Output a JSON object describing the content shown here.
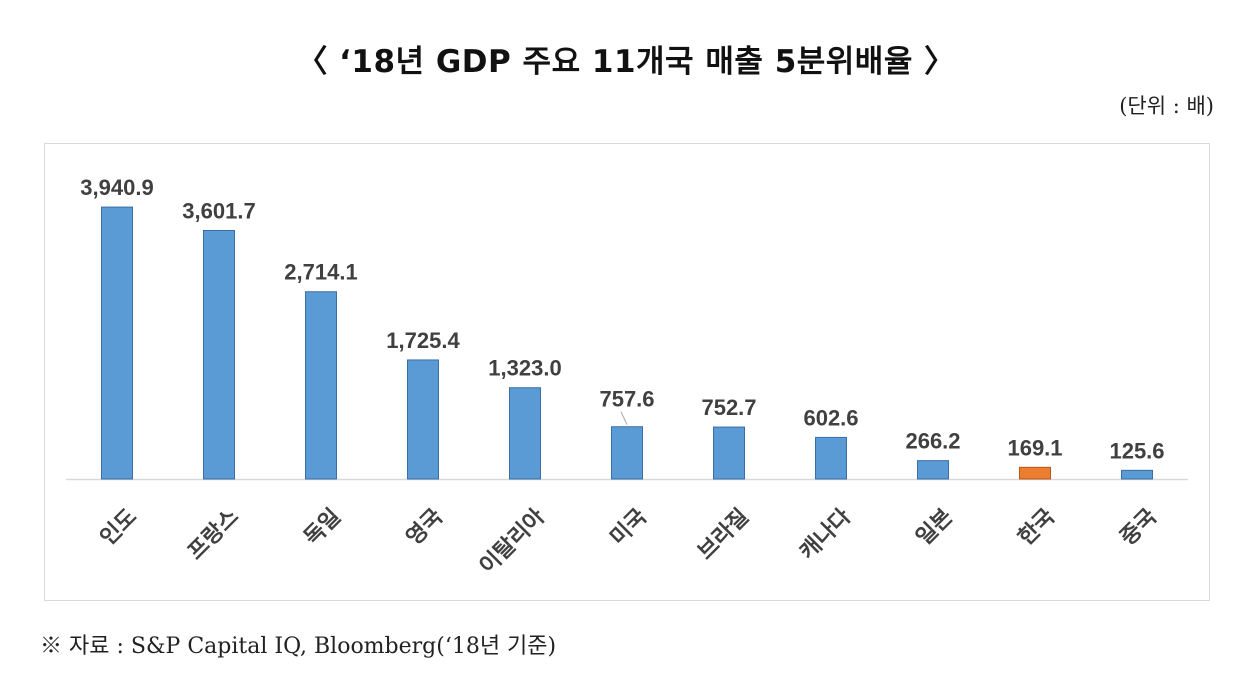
{
  "title": "〈  ‘18년 GDP 주요 11개국 매출 5분위배율 〉",
  "unit_label": "(단위 : 배)",
  "source": "※ 자료 : S&P Capital IQ, Bloomberg(‘18년 기준)",
  "colors": {
    "bar": "#5b9bd5",
    "highlight": "#ed7d31",
    "axis": "#d9d9d9",
    "text": "#404040"
  },
  "chart_data": {
    "type": "bar",
    "categories": [
      "인도",
      "프랑스",
      "독일",
      "영국",
      "이탈리아",
      "미국",
      "브라질",
      "캐나다",
      "일본",
      "한국",
      "중국"
    ],
    "values": [
      3940.9,
      3601.7,
      2714.1,
      1725.4,
      1323.0,
      757.6,
      752.7,
      602.6,
      266.2,
      169.1,
      125.6
    ],
    "value_labels": [
      "3,940.9",
      "3,601.7",
      "2,714.1",
      "1,725.4",
      "1,323.0",
      "757.6",
      "752.7",
      "602.6",
      "266.2",
      "169.1",
      "125.6"
    ],
    "highlight_category": "한국",
    "title": "",
    "xlabel": "",
    "ylabel": "",
    "ylim": [
      0,
      4000
    ],
    "grid": false,
    "legend": "none"
  }
}
